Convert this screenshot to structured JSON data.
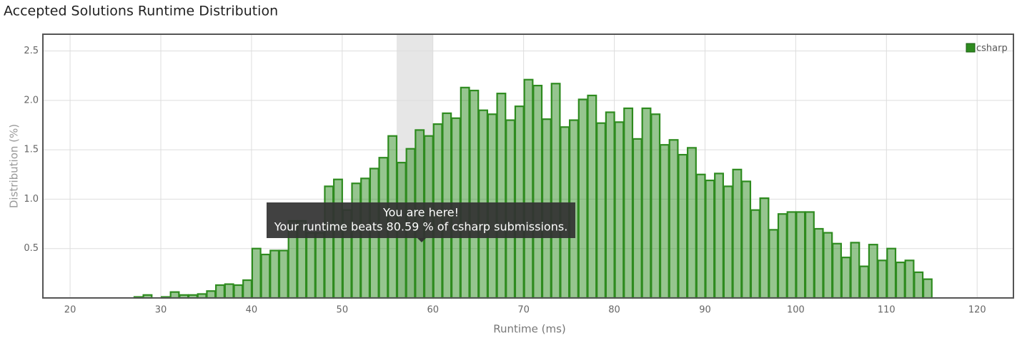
{
  "chart_data": {
    "type": "histogram",
    "title": "Accepted Solutions Runtime Distribution",
    "x_label": "Runtime (ms)",
    "y_label": "Distribution (%)",
    "bins": [
      27,
      28,
      29,
      30,
      31,
      32,
      33,
      34,
      35,
      36,
      37,
      38,
      39,
      40,
      41,
      42,
      43,
      44,
      45,
      46,
      47,
      48,
      49,
      50,
      51,
      52,
      53,
      54,
      55,
      56,
      57,
      58,
      59,
      60,
      61,
      62,
      63,
      64,
      65,
      66,
      67,
      68,
      69,
      70,
      71,
      72,
      73,
      74,
      75,
      76,
      77,
      78,
      79,
      80,
      81,
      82,
      83,
      84,
      85,
      86,
      87,
      88,
      89,
      90,
      91,
      92,
      93,
      94,
      95,
      96,
      97,
      98,
      99,
      100,
      101,
      102,
      103,
      104,
      105,
      106,
      107,
      108,
      109,
      110,
      111,
      112,
      113,
      114,
      115
    ],
    "series": [
      {
        "name": "csharp",
        "color": "#2e8b1f",
        "values": [
          0.01,
          0.03,
          0,
          0.01,
          0.06,
          0.03,
          0.03,
          0.04,
          0.07,
          0.13,
          0.14,
          0.13,
          0.18,
          0.5,
          0.44,
          0.48,
          0.48,
          0.78,
          0.78,
          0.66,
          0.66,
          1.13,
          1.2,
          0.89,
          1.16,
          1.21,
          1.31,
          1.42,
          1.64,
          1.37,
          1.51,
          1.7,
          1.64,
          1.76,
          1.87,
          1.82,
          2.13,
          2.1,
          1.9,
          1.86,
          2.07,
          1.8,
          1.94,
          2.21,
          2.15,
          1.81,
          2.17,
          1.73,
          1.8,
          2.01,
          2.05,
          1.77,
          1.88,
          1.78,
          1.92,
          1.61,
          1.92,
          1.86,
          1.55,
          1.6,
          1.45,
          1.52,
          1.25,
          1.19,
          1.26,
          1.13,
          1.3,
          1.18,
          0.89,
          1.01,
          0.69,
          0.85,
          0.87,
          0.87,
          0.87,
          0.7,
          0.66,
          0.55,
          0.41,
          0.56,
          0.32,
          0.54,
          0.38,
          0.5,
          0.36,
          0.38,
          0.26,
          0.19
        ]
      }
    ],
    "highlight": [
      56,
      60
    ],
    "xlim": [
      17,
      124
    ],
    "xticks": [
      20,
      30,
      40,
      50,
      60,
      70,
      80,
      90,
      100,
      110,
      120
    ],
    "ylim": [
      0,
      2.67
    ],
    "yticks": [
      0.5,
      {
        "value": 1,
        "label": "1.0"
      },
      1.5,
      {
        "value": 2,
        "label": "2.0"
      },
      2.5
    ],
    "grid": true,
    "legend": "top-right",
    "tooltip": {
      "title": "You are here!",
      "text": "Your runtime beats 80.59 % of csharp submissions."
    }
  }
}
